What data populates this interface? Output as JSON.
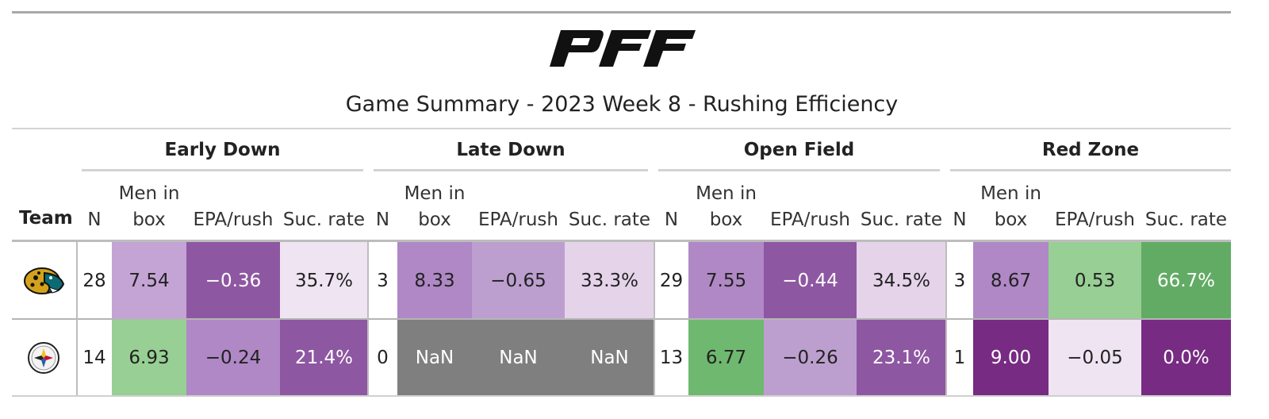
{
  "header": {
    "brand_logo": "PFF",
    "title": "Game Summary - 2023 Week 8 - Rushing Efficiency"
  },
  "table": {
    "team_label": "Team",
    "groups": [
      "Early Down",
      "Late Down",
      "Open Field",
      "Red Zone"
    ],
    "columns": {
      "n": "N",
      "men_line1": "Men in",
      "men_line2": "box",
      "epa": "EPA/rush",
      "suc": "Suc. rate"
    },
    "rows": [
      {
        "team_icon": "jaguars-logo-icon",
        "groups": [
          {
            "n": "28",
            "men": "7.54",
            "epa": "−0.36",
            "suc": "35.7%"
          },
          {
            "n": "3",
            "men": "8.33",
            "epa": "−0.65",
            "suc": "33.3%"
          },
          {
            "n": "29",
            "men": "7.55",
            "epa": "−0.44",
            "suc": "34.5%"
          },
          {
            "n": "3",
            "men": "8.67",
            "epa": "0.53",
            "suc": "66.7%"
          }
        ]
      },
      {
        "team_icon": "steelers-logo-icon",
        "groups": [
          {
            "n": "14",
            "men": "6.93",
            "epa": "−0.24",
            "suc": "21.4%"
          },
          {
            "n": "0",
            "men": "NaN",
            "epa": "NaN",
            "suc": "NaN"
          },
          {
            "n": "13",
            "men": "6.77",
            "epa": "−0.26",
            "suc": "23.1%"
          },
          {
            "n": "1",
            "men": "9.00",
            "epa": "−0.05",
            "suc": "0.0%"
          }
        ]
      }
    ],
    "cell_colors": [
      [
        [
          "#c4a4d4",
          "#8e57a2",
          "#efe4f1"
        ],
        [
          "#af88c5",
          "#bd9fcf",
          "#e5d3ea"
        ],
        [
          "#af88c5",
          "#8e57a2",
          "#e5d3ea"
        ],
        [
          "#af88c5",
          "#98cf94",
          "#62ab65"
        ]
      ],
      [
        [
          "#98cf94",
          "#af88c5",
          "#8e57a2"
        ],
        [
          "#7f7f7f",
          "#7f7f7f",
          "#7f7f7f"
        ],
        [
          "#6fb86f",
          "#bd9fcf",
          "#8e57a2"
        ],
        [
          "#772b82",
          "#efe4f1",
          "#772b82"
        ]
      ]
    ]
  }
}
